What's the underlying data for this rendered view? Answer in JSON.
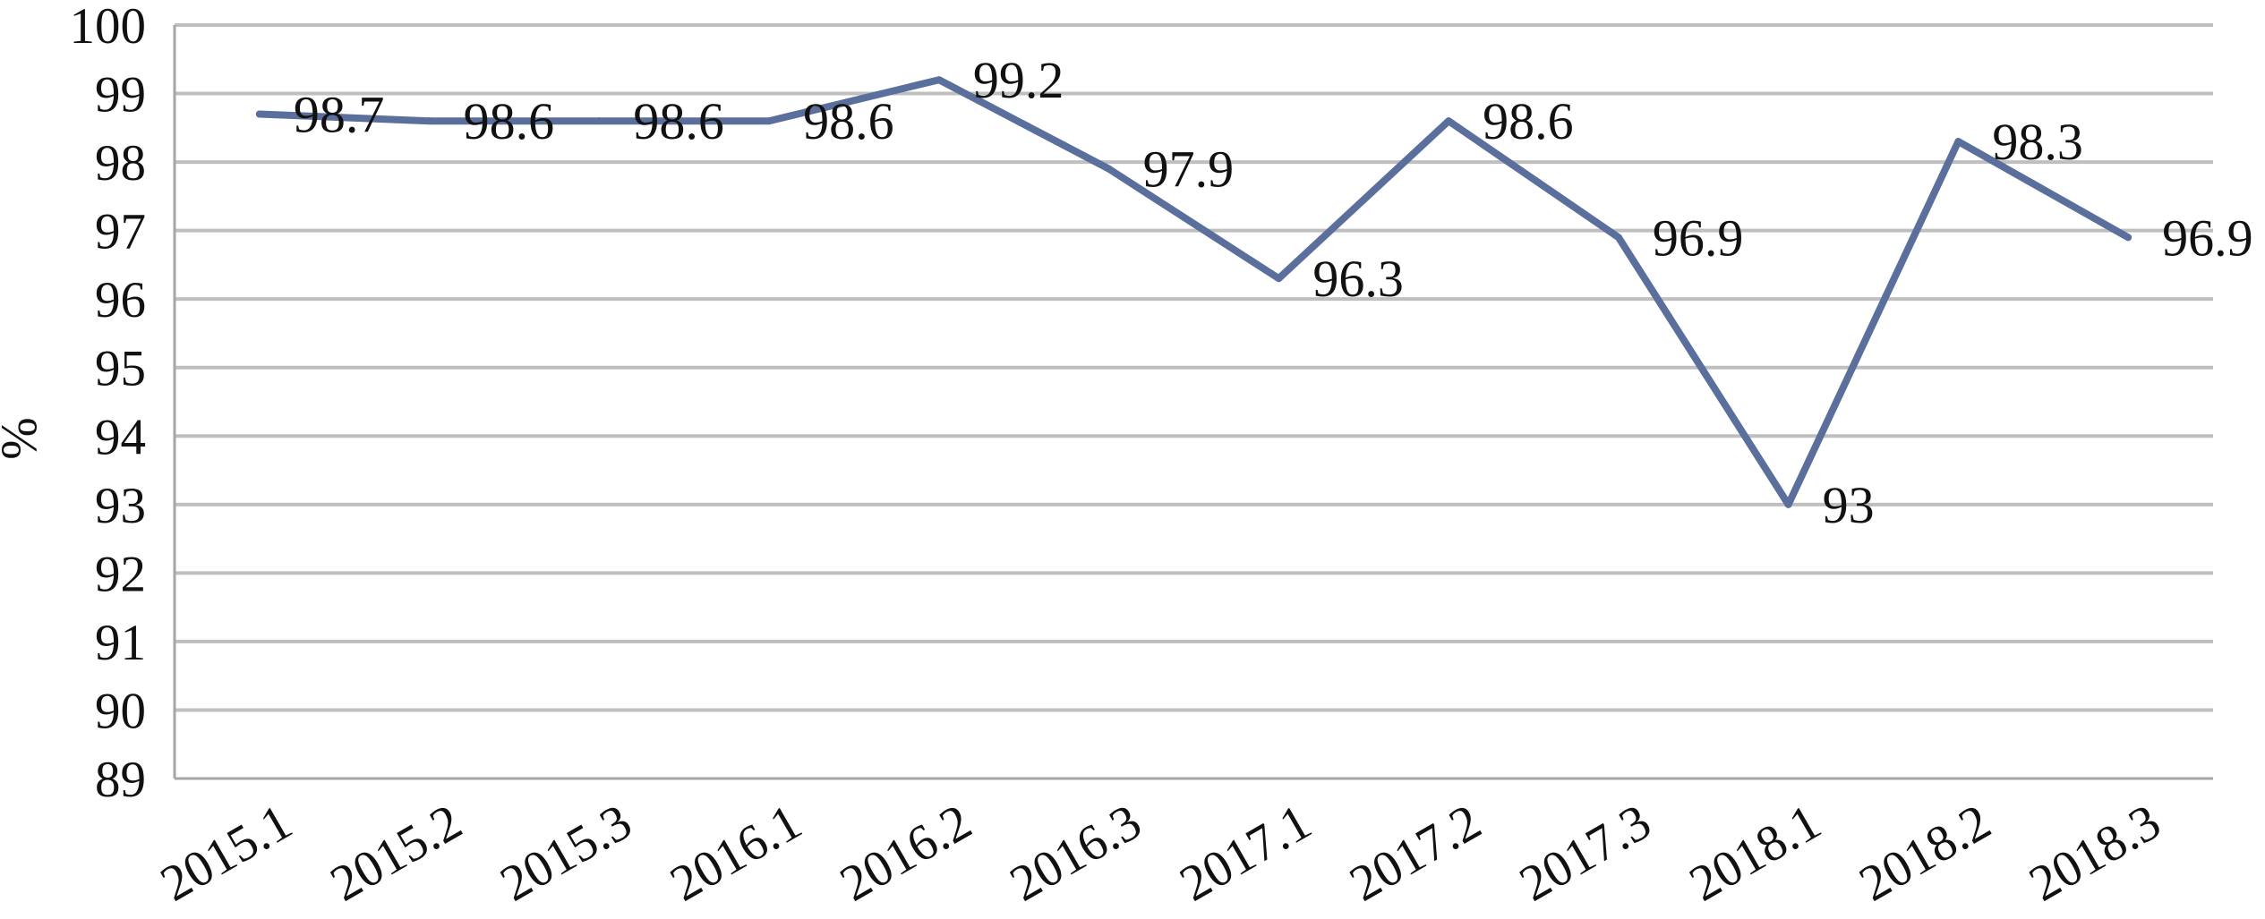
{
  "chart_data": {
    "type": "line",
    "categories": [
      "2015.1",
      "2015.2",
      "2015.3",
      "2016.1",
      "2016.2",
      "2016.3",
      "2017.1",
      "2017.2",
      "2017.3",
      "2018.1",
      "2018.2",
      "2018.3"
    ],
    "series": [
      {
        "values": [
          98.7,
          98.6,
          98.6,
          98.6,
          99.2,
          97.9,
          96.3,
          98.6,
          96.9,
          93,
          98.3,
          96.9
        ],
        "color": "#5b6f9c"
      }
    ],
    "data_labels": [
      "98.7",
      "98.6",
      "98.6",
      "98.6",
      "99.2",
      "97.9",
      "96.3",
      "98.6",
      "96.9",
      "93",
      "98.3",
      "96.9"
    ],
    "yticks": [
      "89",
      "90",
      "91",
      "92",
      "93",
      "94",
      "95",
      "96",
      "97",
      "98",
      "99",
      "100"
    ],
    "ylim": [
      89,
      100
    ],
    "ylabel": "%",
    "xlabel": "",
    "title": "",
    "grid": true,
    "legend": "none"
  }
}
